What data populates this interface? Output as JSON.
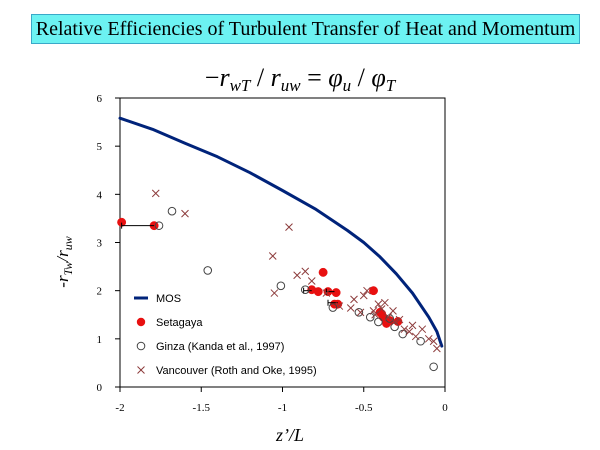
{
  "slide": {
    "title": "Relative Efficiencies of Turbulent Transfer of Heat and Momentum",
    "formula": {
      "minus": "−",
      "r1": "r",
      "r1_sub": "wT",
      "slash1": " / ",
      "r2": "r",
      "r2_sub": "uw",
      "equals": " = ",
      "phi1": "φ",
      "phi1_sub": "u",
      "slash2": " / ",
      "phi2": "φ",
      "phi2_sub": "T"
    }
  },
  "chart_data": {
    "type": "scatter",
    "xlabel": "z’/L",
    "ylabel": {
      "prefix": "-r",
      "sub1": "Tw",
      "mid": "/r",
      "sub2": "uw"
    },
    "xlim": [
      -2,
      0
    ],
    "ylim": [
      0,
      6
    ],
    "xticks": [
      -2,
      -1.5,
      -1,
      -0.5,
      0
    ],
    "xtick_labels": [
      "-2",
      "-1.5",
      "-1",
      "-0.5",
      "0"
    ],
    "yticks": [
      0,
      1,
      2,
      3,
      4,
      5,
      6
    ],
    "ytick_labels": [
      "0",
      "1",
      "2",
      "3",
      "4",
      "5",
      "6"
    ],
    "grid": false,
    "legend_position": "bottom-left",
    "series": [
      {
        "name": "MOS",
        "marker": "line",
        "color": "#00237a",
        "x": [
          -2,
          -1.8,
          -1.6,
          -1.4,
          -1.2,
          -1.0,
          -0.8,
          -0.6,
          -0.5,
          -0.4,
          -0.3,
          -0.2,
          -0.1,
          -0.05,
          -0.02
        ],
        "y": [
          5.58,
          5.35,
          5.06,
          4.78,
          4.45,
          4.08,
          3.7,
          3.25,
          3.0,
          2.7,
          2.35,
          1.95,
          1.45,
          1.15,
          0.85
        ]
      },
      {
        "name": "Setagaya",
        "marker": "filled-circle",
        "color": "#e81010",
        "x": [
          -1.99,
          -1.79,
          -0.82,
          -0.78,
          -0.75,
          -0.72,
          -0.68,
          -0.67,
          -0.66,
          -0.44,
          -0.4,
          -0.39,
          -0.38,
          -0.36,
          -0.34,
          -0.29
        ],
        "y": [
          3.42,
          3.35,
          2.02,
          1.98,
          2.38,
          1.98,
          1.72,
          1.96,
          1.72,
          2.0,
          1.55,
          1.52,
          1.45,
          1.32,
          1.38,
          1.36
        ],
        "error_bars": [
          {
            "x1": -1.99,
            "x2": -1.79,
            "y": 3.35
          },
          {
            "x1": -0.87,
            "x2": -0.82,
            "y": 2.0
          },
          {
            "x1": -0.73,
            "x2": -0.68,
            "y": 1.98
          },
          {
            "x1": -0.72,
            "x2": -0.66,
            "y": 1.75
          }
        ]
      },
      {
        "name": "Ginza (Kanda et al., 1997)",
        "marker": "open-circle",
        "color": "#444444",
        "x": [
          -1.76,
          -1.68,
          -1.46,
          -1.01,
          -0.86,
          -0.69,
          -0.53,
          -0.46,
          -0.41,
          -0.34,
          -0.31,
          -0.26,
          -0.15,
          -0.07
        ],
        "y": [
          3.35,
          3.65,
          2.42,
          2.1,
          2.02,
          1.65,
          1.55,
          1.45,
          1.35,
          1.42,
          1.25,
          1.1,
          0.95,
          0.42
        ]
      },
      {
        "name": "Vancouver (Roth and Oke, 1995)",
        "marker": "x",
        "color": "#8c3a3a",
        "x": [
          -1.78,
          -1.6,
          -1.06,
          -0.96,
          -0.91,
          -0.86,
          -0.82,
          -1.05,
          -0.73,
          -0.65,
          -0.58,
          -0.56,
          -0.52,
          -0.5,
          -0.48,
          -0.44,
          -0.43,
          -0.41,
          -0.39,
          -0.37,
          -0.35,
          -0.32,
          -0.31,
          -0.28,
          -0.25,
          -0.22,
          -0.2,
          -0.18,
          -0.14,
          -0.1,
          -0.07,
          -0.05
        ],
        "y": [
          4.02,
          3.6,
          2.72,
          3.32,
          2.32,
          2.4,
          2.2,
          1.95,
          1.95,
          1.68,
          1.64,
          1.82,
          1.55,
          1.9,
          2.0,
          1.58,
          1.5,
          1.72,
          1.62,
          1.75,
          1.45,
          1.58,
          1.35,
          1.4,
          1.2,
          1.15,
          1.28,
          1.05,
          1.2,
          1.0,
          0.95,
          0.8
        ]
      }
    ]
  }
}
